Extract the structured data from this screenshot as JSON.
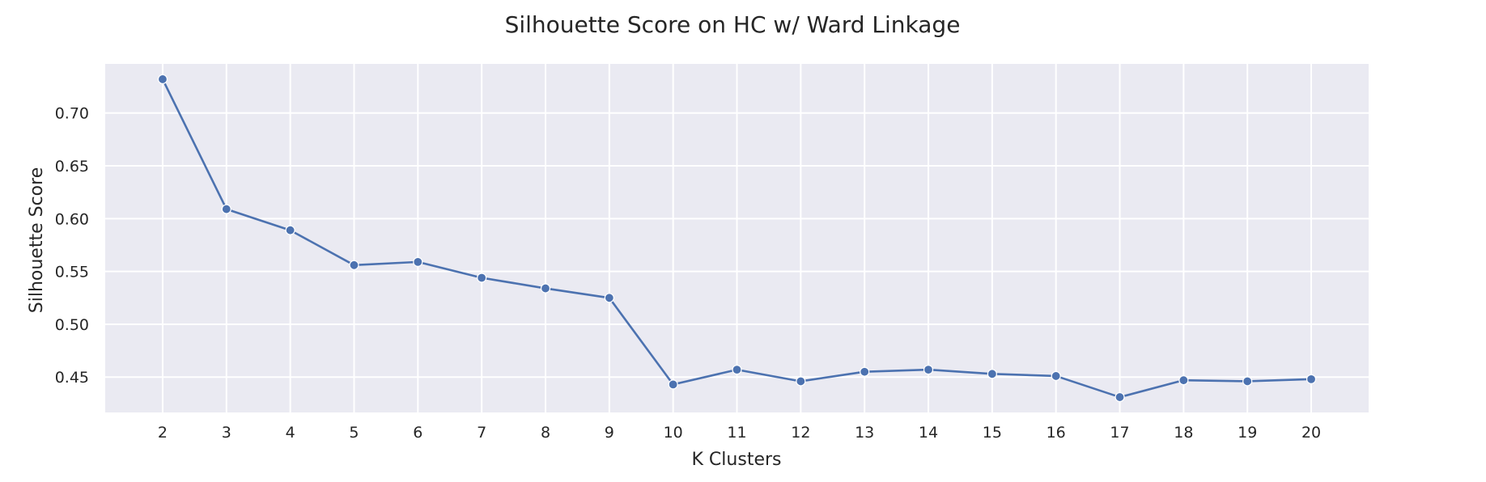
{
  "chart_data": {
    "type": "line",
    "title": "Silhouette Score on HC w/ Ward Linkage",
    "xlabel": "K Clusters",
    "ylabel": "Silhouette Score",
    "x": [
      "2",
      "3",
      "4",
      "5",
      "6",
      "7",
      "8",
      "9",
      "10",
      "11",
      "12",
      "13",
      "14",
      "15",
      "16",
      "17",
      "18",
      "19",
      "20"
    ],
    "y_ticks": [
      "0.45",
      "0.50",
      "0.55",
      "0.60",
      "0.65",
      "0.70"
    ],
    "series": [
      {
        "values": [
          0.732,
          0.609,
          0.589,
          0.556,
          0.559,
          0.544,
          0.534,
          0.525,
          0.443,
          0.457,
          0.446,
          0.455,
          0.457,
          0.453,
          0.451,
          0.431,
          0.447,
          0.446,
          0.448
        ],
        "color": "#4c72b0",
        "marker": "circle"
      }
    ],
    "xlim": [
      1.1,
      20.9
    ],
    "ylim": [
      0.4165,
      0.7465
    ],
    "grid": true,
    "style": "seaborn-darkgrid",
    "background_color": "#eaeaf2",
    "grid_color": "#ffffff"
  }
}
